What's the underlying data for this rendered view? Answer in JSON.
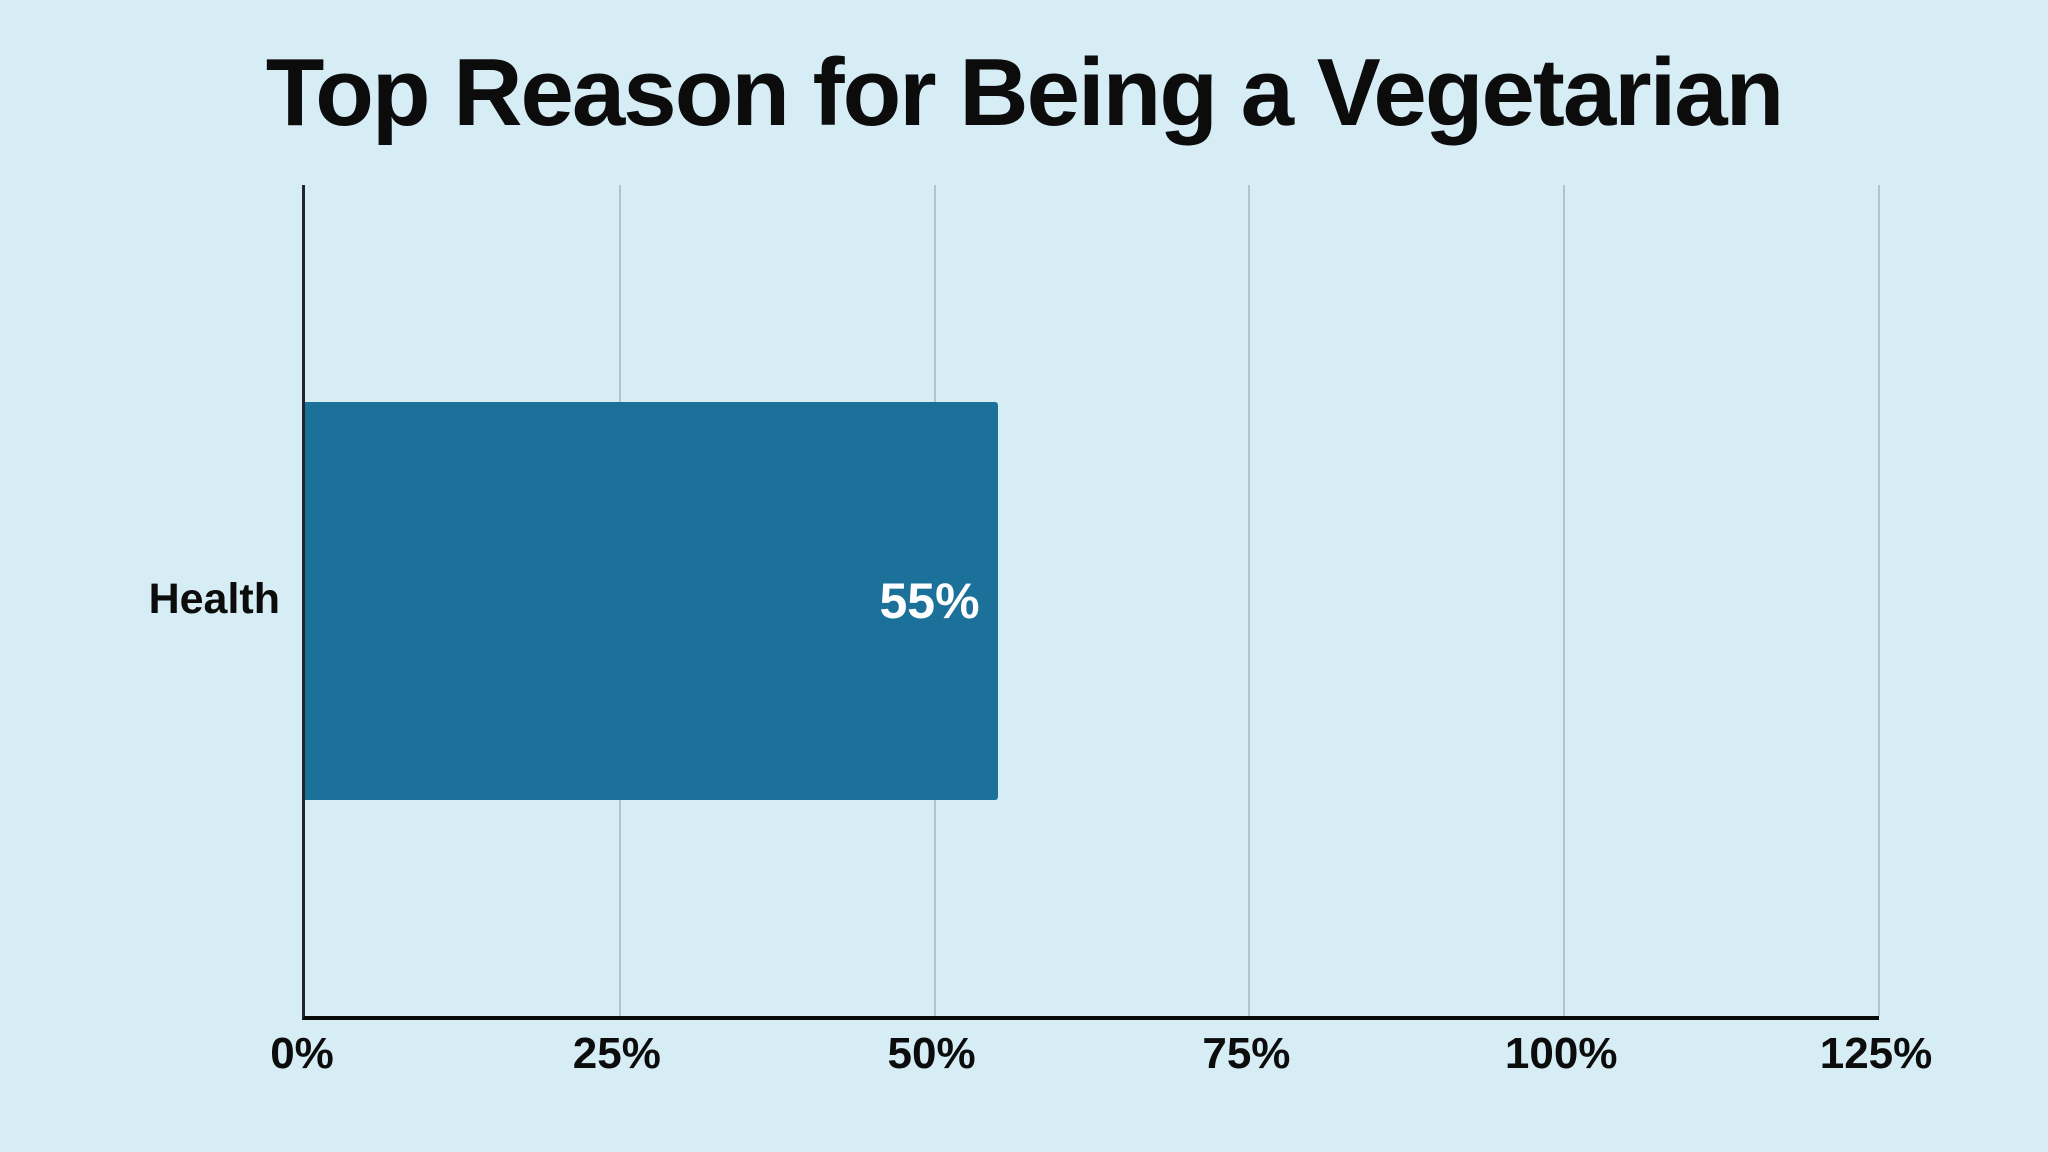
{
  "page": {
    "background_color": "#d7edf5",
    "text_color": "#0c0c0c"
  },
  "chart_data": {
    "type": "bar",
    "orientation": "horizontal",
    "title": "Top Reason for Being a Vegetarian",
    "categories": [
      "Health"
    ],
    "values": [
      55
    ],
    "value_labels": [
      "55%"
    ],
    "xlabel": "",
    "ylabel": "",
    "xlim": [
      0,
      125
    ],
    "x_tick_values": [
      0,
      25,
      50,
      75,
      100,
      125
    ],
    "x_tick_labels": [
      "0%",
      "25%",
      "50%",
      "75%",
      "100%",
      "125%"
    ],
    "grid": "vertical-gridlines-on",
    "legend": "none",
    "bar_color": "#1b7199",
    "bar_label_color": "#ffffff",
    "gridline_color": "#b3c2c9",
    "axis_line_color": "#0a0a0a"
  }
}
